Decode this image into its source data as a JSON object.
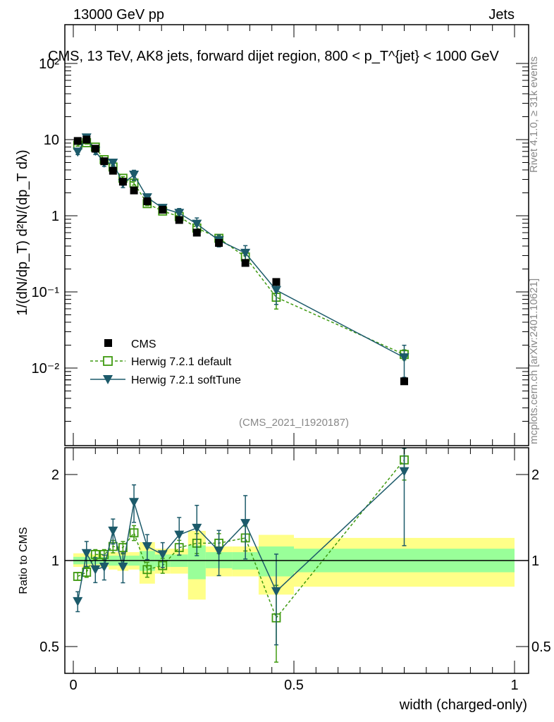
{
  "header": {
    "left": "13000 GeV pp",
    "right": "Jets"
  },
  "side": {
    "rivet": "Rivet 4.1.0, ≥ 31k events",
    "mcplots": "mcplots.cern.ch [arXiv:2401.10621]"
  },
  "analysis_id": "(CMS_2021_I1920187)",
  "chart_data": {
    "type": "scatter",
    "title": "CMS, 13 TeV, AK8 jets, forward dijet region, 800 < p_T^{jet} < 1000 GeV",
    "ylabel": "1/(dN/dp_T) d²N/(dp_T dλ)",
    "xlabel": "width (charged-only)",
    "ratio_ylabel": "Ratio to CMS",
    "xlim": [
      -0.019,
      1.03
    ],
    "ylim": [
      0.001,
      320
    ],
    "ratio_ylim": [
      0.4,
      2.48
    ],
    "yscale": "log",
    "x_ticks": [
      "0",
      "0.5",
      "1"
    ],
    "y_ticks": [
      "10⁻²",
      "10⁻¹",
      "1",
      "10",
      "10²"
    ],
    "ratio_ticks": [
      "0.5",
      "1",
      "2"
    ],
    "bin_edges": [
      0,
      0.02,
      0.04,
      0.06,
      0.08,
      0.1,
      0.125,
      0.15,
      0.185,
      0.22,
      0.26,
      0.3,
      0.36,
      0.42,
      0.5,
      1.0
    ],
    "x": [
      0.01,
      0.03,
      0.05,
      0.07,
      0.09,
      0.1125,
      0.1375,
      0.1675,
      0.2025,
      0.24,
      0.28,
      0.33,
      0.39,
      0.46,
      0.75
    ],
    "series": [
      {
        "name": "CMS",
        "color": "#000000",
        "values": [
          9.6,
          10.0,
          7.6,
          5.2,
          3.9,
          2.8,
          2.15,
          1.55,
          1.2,
          0.88,
          0.6,
          0.44,
          0.24,
          0.135,
          0.0067
        ],
        "band_yellow": [
          [
            0.95,
            1.06
          ],
          [
            0.94,
            1.06
          ],
          [
            0.95,
            1.05
          ],
          [
            0.95,
            1.05
          ],
          [
            0.93,
            1.07
          ],
          [
            0.92,
            1.07
          ],
          [
            0.93,
            1.07
          ],
          [
            0.83,
            1.16
          ],
          [
            0.9,
            1.1
          ],
          [
            0.9,
            1.1
          ],
          [
            0.73,
            1.27
          ],
          [
            0.88,
            1.12
          ],
          [
            0.88,
            1.12
          ],
          [
            0.76,
            1.23
          ],
          [
            0.81,
            1.2
          ]
        ],
        "band_green": [
          [
            0.97,
            1.03
          ],
          [
            0.97,
            1.03
          ],
          [
            0.97,
            1.03
          ],
          [
            0.97,
            1.03
          ],
          [
            0.96,
            1.04
          ],
          [
            0.96,
            1.04
          ],
          [
            0.96,
            1.04
          ],
          [
            0.92,
            1.08
          ],
          [
            0.95,
            1.05
          ],
          [
            0.95,
            1.05
          ],
          [
            0.86,
            1.13
          ],
          [
            0.94,
            1.07
          ],
          [
            0.93,
            1.07
          ],
          [
            0.88,
            1.12
          ],
          [
            0.91,
            1.1
          ]
        ]
      },
      {
        "name": "Herwig 7.2.1 default",
        "color": "#3f9a10",
        "ratio": [
          0.88,
          0.91,
          1.05,
          1.05,
          1.12,
          1.11,
          1.25,
          0.93,
          0.96,
          1.11,
          1.15,
          1.15,
          1.2,
          0.63,
          2.25
        ],
        "rel_err": [
          0.03,
          0.04,
          0.04,
          0.04,
          0.05,
          0.05,
          0.06,
          0.06,
          0.06,
          0.06,
          0.08,
          0.08,
          0.1,
          0.3,
          0.15
        ]
      },
      {
        "name": "Herwig 7.2.1 softTune",
        "color": "#1c5a6a",
        "ratio": [
          0.72,
          1.06,
          0.93,
          0.95,
          1.27,
          0.95,
          1.6,
          1.12,
          1.05,
          1.23,
          1.3,
          1.08,
          1.35,
          0.78,
          2.05
        ],
        "rel_err": [
          0.08,
          0.1,
          0.1,
          0.1,
          0.1,
          0.12,
          0.15,
          0.1,
          0.1,
          0.15,
          0.2,
          0.18,
          0.25,
          0.35,
          0.45
        ]
      }
    ]
  }
}
